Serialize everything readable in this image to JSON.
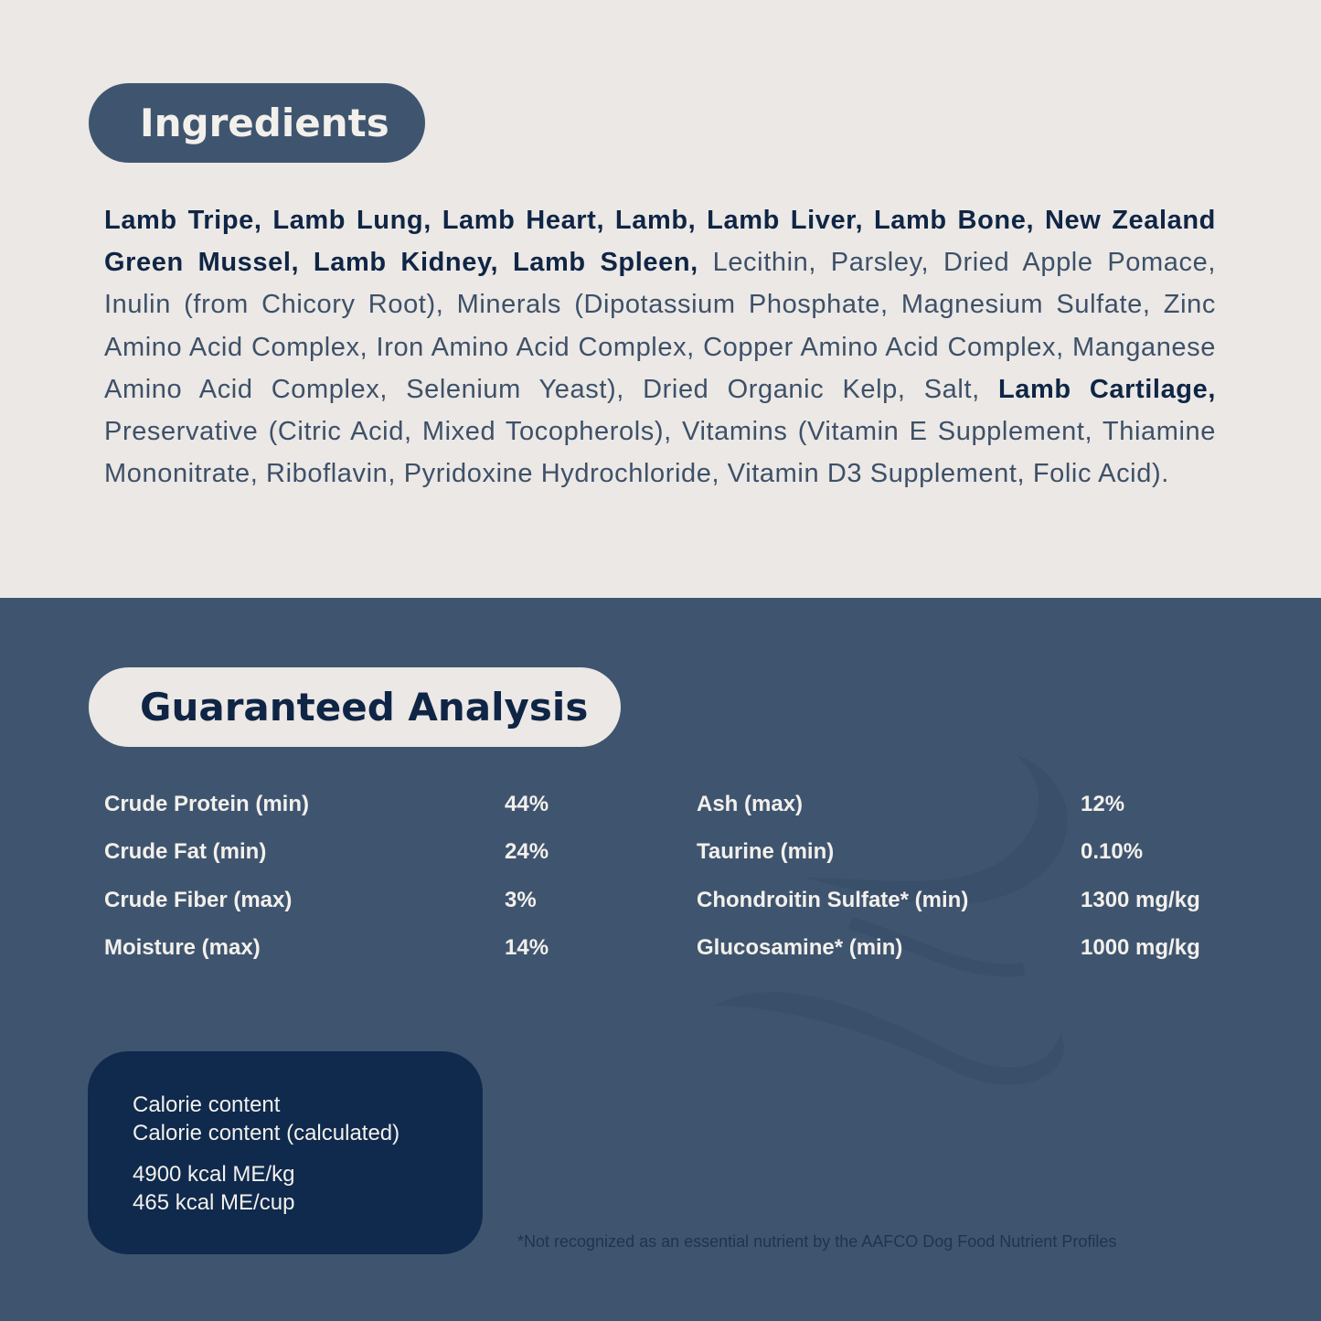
{
  "ingredients": {
    "title": "Ingredients",
    "bold_part_1": "Lamb Tripe, Lamb Lung, Lamb Heart, Lamb, Lamb Liver, Lamb Bone, New Zealand Green Mussel, Lamb Kidney, Lamb Spleen,",
    "regular_part_1": " Lecithin, Parsley, Dried Apple Pomace, Inulin (from Chicory Root), Minerals (Dipotassium Phosphate, Magnesium Sulfate, Zinc Amino Acid Complex, Iron Amino Acid Complex, Copper Amino Acid Complex, Manganese Amino Acid Complex, Selenium Yeast), Dried Organic Kelp, Salt, ",
    "bold_part_2": "Lamb Cartilage,",
    "regular_part_2": " Preservative (Citric Acid, Mixed Tocopherols), Vitamins (Vitamin E Supplement, Thiamine Mononitrate, Riboflavin, Pyridoxine Hydrochloride, Vitamin D3 Supplement, Folic Acid)."
  },
  "analysis": {
    "title": "Guaranteed Analysis",
    "left": [
      {
        "label": "Crude Protein (min)",
        "value": "44%"
      },
      {
        "label": "Crude Fat (min)",
        "value": "24%"
      },
      {
        "label": "Crude Fiber (max)",
        "value": "3%"
      },
      {
        "label": "Moisture (max)",
        "value": "14%"
      }
    ],
    "right": [
      {
        "label": "Ash (max)",
        "value": "12%"
      },
      {
        "label": "Taurine (min)",
        "value": "0.10%"
      },
      {
        "label": "Chondroitin Sulfate* (min)",
        "value": "1300 mg/kg"
      },
      {
        "label": "Glucosamine* (min)",
        "value": "1000 mg/kg"
      }
    ]
  },
  "calorie": {
    "line1": "Calorie content",
    "line2": "Calorie content (calculated)",
    "value1": "4900 kcal ME/kg",
    "value2": "465 kcal ME/cup"
  },
  "footnote": "*Not recognized as an essential nutrient by the AAFCO Dog Food Nutrient Profiles",
  "colors": {
    "cream": "#ebe8e5",
    "slate_blue": "#3f556f",
    "navy": "#0f2a4d"
  },
  "decoration": "wave-icon"
}
